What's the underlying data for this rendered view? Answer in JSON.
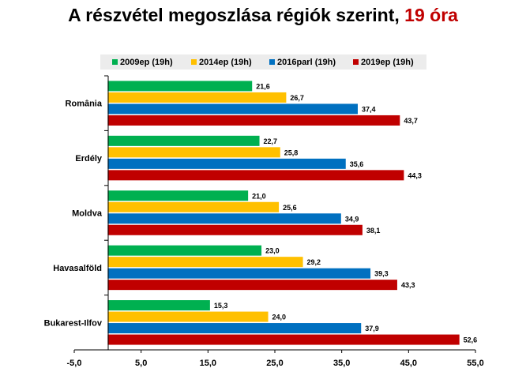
{
  "title": {
    "main": "A részvétel megoszlása régiók szerint, ",
    "highlight": "19 óra"
  },
  "colors": {
    "title_highlight": "#c00000",
    "legend_background": "#ececec"
  },
  "chart_data": {
    "type": "bar",
    "orientation": "horizontal",
    "title": "A részvétel megoszlása régiók szerint, 19 óra",
    "categories": [
      "România",
      "Erdély",
      "Moldva",
      "Havasalföld",
      "Bukarest-Ilfov"
    ],
    "series": [
      {
        "name": "2009ep (19h)",
        "color": "#00b050",
        "values": [
          21.6,
          22.7,
          21.0,
          23.0,
          15.3
        ],
        "labels": [
          "21,6",
          "22,7",
          "21,0",
          "23,0",
          "15,3"
        ]
      },
      {
        "name": "2014ep (19h)",
        "color": "#ffc000",
        "values": [
          26.7,
          25.8,
          25.6,
          29.2,
          24.0
        ],
        "labels": [
          "26,7",
          "25,8",
          "25,6",
          "29,2",
          "24,0"
        ]
      },
      {
        "name": "2016parl (19h)",
        "color": "#0070c0",
        "values": [
          37.4,
          35.6,
          34.9,
          39.3,
          37.9
        ],
        "labels": [
          "37,4",
          "35,6",
          "34,9",
          "39,3",
          "37,9"
        ]
      },
      {
        "name": "2019ep (19h)",
        "color": "#c00000",
        "values": [
          43.7,
          44.3,
          38.1,
          43.3,
          52.6
        ],
        "labels": [
          "43,7",
          "44,3",
          "38,1",
          "43,3",
          "52,6"
        ]
      }
    ],
    "xlim": [
      -5,
      55
    ],
    "xticks": [
      -5,
      5,
      15,
      25,
      35,
      45,
      55
    ],
    "xtick_labels": [
      "-5,0",
      "5,0",
      "15,0",
      "25,0",
      "35,0",
      "45,0",
      "55,0"
    ],
    "grid": false,
    "legend_position": "top"
  }
}
